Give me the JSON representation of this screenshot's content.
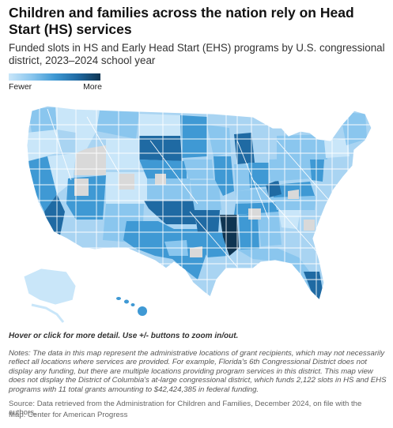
{
  "header": {
    "title": "Children and families across the nation rely on Head Start (HS) services",
    "subtitle": "Funded slots in HS and Early Head Start (EHS) programs by U.S. congressional district, 2023–2024 school year"
  },
  "legend": {
    "low_label": "Fewer",
    "high_label": "More",
    "colors": [
      "#c9e6f9",
      "#8ac6ee",
      "#3f99d4",
      "#1f6aa3",
      "#0f3552"
    ],
    "no_data_color": "#d9d9d9"
  },
  "map": {
    "region": "United States (contiguous), by congressional district",
    "border_color": "#ffffff"
  },
  "footer": {
    "hint": "Hover or click for more detail. Use +/- buttons to zoom in/out.",
    "notes": "Notes: The data in this map represent the administrative locations of grant recipients, which may not necessarily reflect all locations where services are provided. For example, Florida's 6th Congressional District does not display any funding, but there are multiple locations providing program services in this district. This map view does not display the District of Columbia's at-large congressional district, which funds 2,122 slots in HS and EHS programs with 11 total grants amounting to $42,424,385 in federal funding.",
    "source": "Source: Data retrieved from the Administration for Children and Families, December 2024, on file with the authors.",
    "credit": "Map: Center for American Progress"
  }
}
